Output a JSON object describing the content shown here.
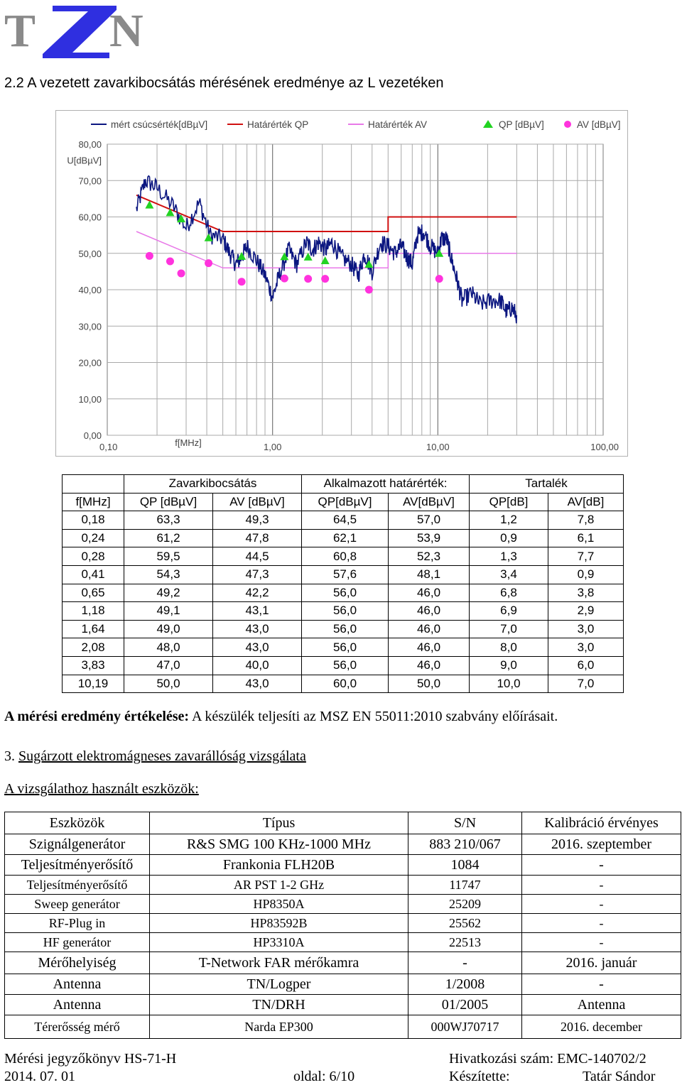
{
  "logo": {
    "letters": [
      "T",
      "N"
    ]
  },
  "section_title": "2.2 A vezetett zavarkibocsátás mérésének eredménye az L vezetéken",
  "chart_data": {
    "type": "line",
    "legend": [
      {
        "label": "mért csúcsérték[dBµV]",
        "color": "#0b1680",
        "marker": "line"
      },
      {
        "label": "Határérték QP",
        "color": "#d01010",
        "marker": "line"
      },
      {
        "label": "Határérték AV",
        "color": "#e879e8",
        "marker": "line"
      },
      {
        "label": "QP [dBµV]",
        "color": "#22d322",
        "marker": "triangle"
      },
      {
        "label": "AV [dBµV]",
        "color": "#ff33dd",
        "marker": "circle"
      }
    ],
    "ylabel": "U[dBµV]",
    "xlabel": "f[MHz]",
    "x_scale": "log",
    "xlim": [
      0.1,
      100
    ],
    "ylim": [
      0,
      80
    ],
    "y_ticks": [
      "0,00",
      "10,00",
      "20,00",
      "30,00",
      "40,00",
      "50,00",
      "60,00",
      "70,00",
      "80,00"
    ],
    "x_ticks": [
      "0,10",
      "1,00",
      "10,00",
      "100,00"
    ],
    "series": [
      {
        "name": "mért csúcsérték[dBµV]",
        "points": [
          [
            0.15,
            62
          ],
          [
            0.17,
            70
          ],
          [
            0.2,
            68
          ],
          [
            0.25,
            63
          ],
          [
            0.3,
            57
          ],
          [
            0.36,
            64
          ],
          [
            0.42,
            55
          ],
          [
            0.5,
            54
          ],
          [
            0.55,
            50
          ],
          [
            0.6,
            47
          ],
          [
            0.65,
            49
          ],
          [
            0.7,
            52
          ],
          [
            0.8,
            48
          ],
          [
            0.9,
            44
          ],
          [
            1.0,
            38
          ],
          [
            1.1,
            44
          ],
          [
            1.25,
            51
          ],
          [
            1.4,
            47
          ],
          [
            1.6,
            53
          ],
          [
            1.75,
            51
          ],
          [
            1.9,
            53
          ],
          [
            2.1,
            51
          ],
          [
            2.3,
            53
          ],
          [
            2.6,
            49
          ],
          [
            3.0,
            47
          ],
          [
            3.3,
            44
          ],
          [
            3.6,
            50
          ],
          [
            4.0,
            45
          ],
          [
            4.5,
            53
          ],
          [
            5.0,
            52
          ],
          [
            5.5,
            50
          ],
          [
            6.0,
            52
          ],
          [
            6.5,
            49
          ],
          [
            7.0,
            47
          ],
          [
            7.5,
            55
          ],
          [
            8.2,
            56
          ],
          [
            9.0,
            52
          ],
          [
            10.0,
            50
          ],
          [
            10.5,
            54
          ],
          [
            11.3,
            54
          ],
          [
            12.0,
            49
          ],
          [
            13.0,
            43
          ],
          [
            14.0,
            37
          ],
          [
            16.0,
            39
          ],
          [
            18.0,
            36
          ],
          [
            21.0,
            37
          ],
          [
            24.0,
            37
          ],
          [
            26.0,
            34
          ],
          [
            28.0,
            35
          ],
          [
            30.0,
            33
          ]
        ]
      },
      {
        "name": "Határérték QP",
        "points": [
          [
            0.15,
            66
          ],
          [
            0.5,
            56
          ],
          [
            5.0,
            56
          ],
          [
            5.0,
            60
          ],
          [
            30.0,
            60
          ]
        ]
      },
      {
        "name": "Határérték AV",
        "points": [
          [
            0.15,
            56
          ],
          [
            0.5,
            46
          ],
          [
            5.0,
            46
          ],
          [
            5.0,
            50
          ],
          [
            30.0,
            50
          ]
        ]
      },
      {
        "name": "QP [dBµV]",
        "points": [
          [
            0.18,
            63.3
          ],
          [
            0.24,
            61.2
          ],
          [
            0.28,
            59.5
          ],
          [
            0.41,
            54.3
          ],
          [
            0.65,
            49.2
          ],
          [
            1.18,
            49.1
          ],
          [
            1.64,
            49.0
          ],
          [
            2.08,
            48.0
          ],
          [
            3.83,
            47.0
          ],
          [
            10.19,
            50.0
          ]
        ]
      },
      {
        "name": "AV [dBµV]",
        "points": [
          [
            0.18,
            49.3
          ],
          [
            0.24,
            47.8
          ],
          [
            0.28,
            44.5
          ],
          [
            0.41,
            47.3
          ],
          [
            0.65,
            42.2
          ],
          [
            1.18,
            43.1
          ],
          [
            1.64,
            43.0
          ],
          [
            2.08,
            43.0
          ],
          [
            3.83,
            40.0
          ],
          [
            10.19,
            43.0
          ]
        ]
      }
    ]
  },
  "results_table": {
    "group_headers": [
      "Zavarkibocsátás",
      "Alkalmazott határérték:",
      "Tartalék"
    ],
    "headers": [
      "f[MHz]",
      "QP [dBµV]",
      "AV [dBµV]",
      "QP[dBµV]",
      "AV[dBµV]",
      "QP[dB]",
      "AV[dB]"
    ],
    "rows": [
      [
        "0,18",
        "63,3",
        "49,3",
        "64,5",
        "57,0",
        "1,2",
        "7,8"
      ],
      [
        "0,24",
        "61,2",
        "47,8",
        "62,1",
        "53,9",
        "0,9",
        "6,1"
      ],
      [
        "0,28",
        "59,5",
        "44,5",
        "60,8",
        "52,3",
        "1,3",
        "7,7"
      ],
      [
        "0,41",
        "54,3",
        "47,3",
        "57,6",
        "48,1",
        "3,4",
        "0,9"
      ],
      [
        "0,65",
        "49,2",
        "42,2",
        "56,0",
        "46,0",
        "6,8",
        "3,8"
      ],
      [
        "1,18",
        "49,1",
        "43,1",
        "56,0",
        "46,0",
        "6,9",
        "2,9"
      ],
      [
        "1,64",
        "49,0",
        "43,0",
        "56,0",
        "46,0",
        "7,0",
        "3,0"
      ],
      [
        "2,08",
        "48,0",
        "43,0",
        "56,0",
        "46,0",
        "8,0",
        "3,0"
      ],
      [
        "3,83",
        "47,0",
        "40,0",
        "56,0",
        "46,0",
        "9,0",
        "6,0"
      ],
      [
        "10,19",
        "50,0",
        "43,0",
        "60,0",
        "50,0",
        "10,0",
        "7,0"
      ]
    ]
  },
  "evaluation": {
    "label": "A mérési eredmény értékelése:",
    "text": " A készülék teljesíti az MSZ EN 55011:2010  szabvány előírásait."
  },
  "section3": {
    "number": "3. ",
    "title": "Sugárzott elektromágneses zavarállóság vizsgálata"
  },
  "tools_heading": "A vizsgálathoz használt eszközök:",
  "tools_table": {
    "headers": [
      "Eszközök",
      "Típus",
      "S/N",
      "Kalibráció érvényes"
    ],
    "rows": [
      [
        "Szignálgenerátor",
        "R&S SMG 100 KHz-1000 MHz",
        "883 210/067",
        "2016. szeptember"
      ],
      [
        "Teljesítményerősítő",
        "Frankonia FLH20B",
        "1084",
        "-"
      ],
      [
        "Teljesítményerősítő",
        "AR PST 1-2 GHz",
        "11747",
        "-"
      ],
      [
        "Sweep generátor",
        "HP8350A",
        "25209",
        "-"
      ],
      [
        "RF-Plug in",
        "HP83592B",
        "25562",
        "-"
      ],
      [
        "HF generátor",
        "HP3310A",
        "22513",
        "-"
      ],
      [
        "Mérőhelyiség",
        "T-Network FAR mérőkamra",
        "-",
        "2016. január"
      ],
      [
        "Antenna",
        "TN/Logper",
        "1/2008",
        "-"
      ],
      [
        "Antenna",
        "TN/DRH",
        "01/2005",
        "Antenna"
      ],
      [
        "Térerősség mérő",
        "Narda EP300",
        "000WJ70717",
        "2016. december"
      ]
    ]
  },
  "footer": {
    "report": "Mérési jegyzőkönyv HS-71-H",
    "reference": "Hivatkozási szám: EMC-140702/2",
    "date": "2014. 07. 01",
    "page": "oldal: 6/10",
    "author_label": "Készítette:",
    "author": "Tatár Sándor"
  }
}
